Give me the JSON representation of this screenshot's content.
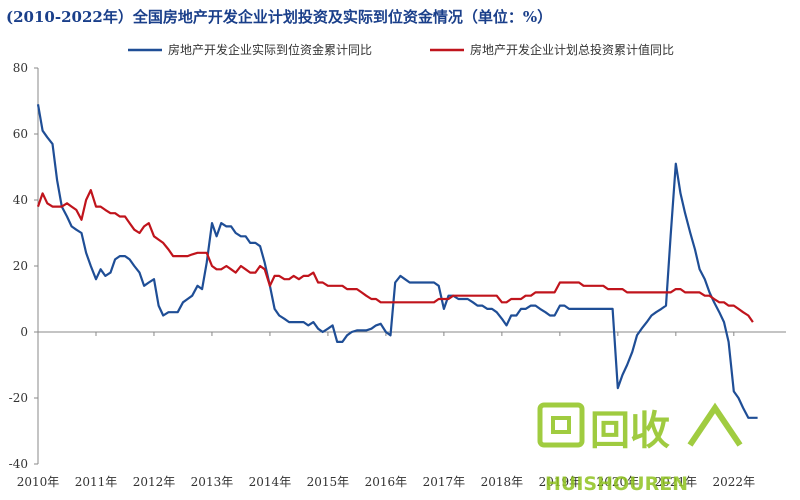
{
  "chart_data": {
    "type": "line",
    "title": "(2010-2022年）全国房地产开发企业计划投资及实际到位资金情况（单位：%）",
    "xlabel": "",
    "ylabel": "",
    "ylim": [
      -40,
      80
    ],
    "yticks": [
      -40,
      -20,
      0,
      20,
      40,
      60,
      80
    ],
    "xlim": [
      2010,
      2022.9
    ],
    "xticks": [
      {
        "x": 2010,
        "label": "2010年"
      },
      {
        "x": 2011,
        "label": "2011年"
      },
      {
        "x": 2012,
        "label": "2012年"
      },
      {
        "x": 2013,
        "label": "2013年"
      },
      {
        "x": 2014,
        "label": "2014年"
      },
      {
        "x": 2015,
        "label": "2015年"
      },
      {
        "x": 2016,
        "label": "2016年"
      },
      {
        "x": 2017,
        "label": "2017年"
      },
      {
        "x": 2018,
        "label": "2018年"
      },
      {
        "x": 2019,
        "label": "2019年"
      },
      {
        "x": 2020,
        "label": "2020年"
      },
      {
        "x": 2021,
        "label": "2021年"
      },
      {
        "x": 2022,
        "label": "2022年"
      }
    ],
    "grid": false,
    "legend_position": "top",
    "series": [
      {
        "name": "房地产开发企业实际到位资金累计同比",
        "color": "#1f4e96",
        "points": [
          [
            2010.0,
            69
          ],
          [
            2010.08,
            61
          ],
          [
            2010.16,
            59
          ],
          [
            2010.25,
            57
          ],
          [
            2010.33,
            46
          ],
          [
            2010.41,
            38
          ],
          [
            2010.5,
            35
          ],
          [
            2010.58,
            32
          ],
          [
            2010.66,
            31
          ],
          [
            2010.75,
            30
          ],
          [
            2010.83,
            24
          ],
          [
            2010.91,
            20
          ],
          [
            2011.0,
            16
          ],
          [
            2011.08,
            19
          ],
          [
            2011.16,
            17
          ],
          [
            2011.25,
            18
          ],
          [
            2011.33,
            22
          ],
          [
            2011.41,
            23
          ],
          [
            2011.5,
            23
          ],
          [
            2011.58,
            22
          ],
          [
            2011.66,
            20
          ],
          [
            2011.75,
            18
          ],
          [
            2011.83,
            14
          ],
          [
            2011.91,
            15
          ],
          [
            2012.0,
            16
          ],
          [
            2012.08,
            8
          ],
          [
            2012.16,
            5
          ],
          [
            2012.25,
            6
          ],
          [
            2012.33,
            6
          ],
          [
            2012.41,
            6
          ],
          [
            2012.5,
            9
          ],
          [
            2012.58,
            10
          ],
          [
            2012.66,
            11
          ],
          [
            2012.75,
            14
          ],
          [
            2012.83,
            13
          ],
          [
            2012.91,
            21
          ],
          [
            2013.0,
            33
          ],
          [
            2013.08,
            29
          ],
          [
            2013.16,
            33
          ],
          [
            2013.25,
            32
          ],
          [
            2013.33,
            32
          ],
          [
            2013.41,
            30
          ],
          [
            2013.5,
            29
          ],
          [
            2013.58,
            29
          ],
          [
            2013.66,
            27
          ],
          [
            2013.75,
            27
          ],
          [
            2013.83,
            26
          ],
          [
            2013.91,
            21
          ],
          [
            2014.0,
            14
          ],
          [
            2014.08,
            7
          ],
          [
            2014.16,
            5
          ],
          [
            2014.25,
            4
          ],
          [
            2014.33,
            3
          ],
          [
            2014.41,
            3
          ],
          [
            2014.5,
            3
          ],
          [
            2014.58,
            3
          ],
          [
            2014.66,
            2
          ],
          [
            2014.75,
            3
          ],
          [
            2014.83,
            1
          ],
          [
            2014.91,
            0
          ],
          [
            2015.0,
            1
          ],
          [
            2015.08,
            2
          ],
          [
            2015.16,
            -3
          ],
          [
            2015.25,
            -3
          ],
          [
            2015.33,
            -1
          ],
          [
            2015.41,
            0
          ],
          [
            2015.5,
            0.5
          ],
          [
            2015.58,
            0.5
          ],
          [
            2015.66,
            0.5
          ],
          [
            2015.75,
            1
          ],
          [
            2015.83,
            2
          ],
          [
            2015.91,
            2.5
          ],
          [
            2016.0,
            0
          ],
          [
            2016.08,
            -1
          ],
          [
            2016.16,
            15
          ],
          [
            2016.25,
            17
          ],
          [
            2016.33,
            16
          ],
          [
            2016.41,
            15
          ],
          [
            2016.5,
            15
          ],
          [
            2016.58,
            15
          ],
          [
            2016.66,
            15
          ],
          [
            2016.75,
            15
          ],
          [
            2016.83,
            15
          ],
          [
            2016.91,
            14
          ],
          [
            2017.0,
            7
          ],
          [
            2017.08,
            11
          ],
          [
            2017.16,
            11
          ],
          [
            2017.25,
            10
          ],
          [
            2017.33,
            10
          ],
          [
            2017.41,
            10
          ],
          [
            2017.5,
            9
          ],
          [
            2017.58,
            8
          ],
          [
            2017.66,
            8
          ],
          [
            2017.75,
            7
          ],
          [
            2017.83,
            7
          ],
          [
            2017.91,
            6
          ],
          [
            2018.0,
            4
          ],
          [
            2018.08,
            2
          ],
          [
            2018.16,
            5
          ],
          [
            2018.25,
            5
          ],
          [
            2018.33,
            7
          ],
          [
            2018.41,
            7
          ],
          [
            2018.5,
            8
          ],
          [
            2018.58,
            8
          ],
          [
            2018.66,
            7
          ],
          [
            2018.75,
            6
          ],
          [
            2018.83,
            5
          ],
          [
            2018.91,
            5
          ],
          [
            2019.0,
            8
          ],
          [
            2019.08,
            8
          ],
          [
            2019.16,
            7
          ],
          [
            2019.25,
            7
          ],
          [
            2019.33,
            7
          ],
          [
            2019.41,
            7
          ],
          [
            2019.5,
            7
          ],
          [
            2019.58,
            7
          ],
          [
            2019.66,
            7
          ],
          [
            2019.75,
            7
          ],
          [
            2019.83,
            7
          ],
          [
            2019.91,
            7
          ],
          [
            2020.0,
            -17
          ],
          [
            2020.08,
            -13
          ],
          [
            2020.16,
            -10
          ],
          [
            2020.25,
            -6
          ],
          [
            2020.33,
            -1
          ],
          [
            2020.41,
            1
          ],
          [
            2020.5,
            3
          ],
          [
            2020.58,
            5
          ],
          [
            2020.66,
            6
          ],
          [
            2020.75,
            7
          ],
          [
            2020.83,
            8
          ],
          [
            2020.91,
            29
          ],
          [
            2021.0,
            51
          ],
          [
            2021.08,
            42
          ],
          [
            2021.16,
            36
          ],
          [
            2021.25,
            30
          ],
          [
            2021.33,
            25
          ],
          [
            2021.41,
            19
          ],
          [
            2021.5,
            16
          ],
          [
            2021.58,
            12
          ],
          [
            2021.66,
            9
          ],
          [
            2021.75,
            6
          ],
          [
            2021.83,
            3
          ],
          [
            2021.91,
            -3
          ],
          [
            2022.0,
            -18
          ],
          [
            2022.08,
            -20
          ],
          [
            2022.16,
            -23
          ],
          [
            2022.25,
            -26
          ],
          [
            2022.33,
            -26
          ],
          [
            2022.41,
            -26
          ]
        ]
      },
      {
        "name": "房地产开发企业计划总投资累计值同比",
        "color": "#c0141c",
        "points": [
          [
            2010.0,
            38
          ],
          [
            2010.08,
            42
          ],
          [
            2010.16,
            39
          ],
          [
            2010.25,
            38
          ],
          [
            2010.33,
            38
          ],
          [
            2010.41,
            38
          ],
          [
            2010.5,
            39
          ],
          [
            2010.58,
            38
          ],
          [
            2010.66,
            37
          ],
          [
            2010.75,
            34
          ],
          [
            2010.83,
            40
          ],
          [
            2010.91,
            43
          ],
          [
            2011.0,
            38
          ],
          [
            2011.08,
            38
          ],
          [
            2011.16,
            37
          ],
          [
            2011.25,
            36
          ],
          [
            2011.33,
            36
          ],
          [
            2011.41,
            35
          ],
          [
            2011.5,
            35
          ],
          [
            2011.58,
            33
          ],
          [
            2011.66,
            31
          ],
          [
            2011.75,
            30
          ],
          [
            2011.83,
            32
          ],
          [
            2011.91,
            33
          ],
          [
            2012.0,
            29
          ],
          [
            2012.08,
            28
          ],
          [
            2012.16,
            27
          ],
          [
            2012.25,
            25
          ],
          [
            2012.33,
            23
          ],
          [
            2012.41,
            23
          ],
          [
            2012.5,
            23
          ],
          [
            2012.58,
            23
          ],
          [
            2012.66,
            23.5
          ],
          [
            2012.75,
            24
          ],
          [
            2012.83,
            24
          ],
          [
            2012.91,
            24
          ],
          [
            2013.0,
            20
          ],
          [
            2013.08,
            19
          ],
          [
            2013.16,
            19
          ],
          [
            2013.25,
            20
          ],
          [
            2013.33,
            19
          ],
          [
            2013.41,
            18
          ],
          [
            2013.5,
            20
          ],
          [
            2013.58,
            19
          ],
          [
            2013.66,
            18
          ],
          [
            2013.75,
            18
          ],
          [
            2013.83,
            20
          ],
          [
            2013.91,
            19
          ],
          [
            2014.0,
            14
          ],
          [
            2014.08,
            17
          ],
          [
            2014.16,
            17
          ],
          [
            2014.25,
            16
          ],
          [
            2014.33,
            16
          ],
          [
            2014.41,
            17
          ],
          [
            2014.5,
            16
          ],
          [
            2014.58,
            17
          ],
          [
            2014.66,
            17
          ],
          [
            2014.75,
            18
          ],
          [
            2014.83,
            15
          ],
          [
            2014.91,
            15
          ],
          [
            2015.0,
            14
          ],
          [
            2015.08,
            14
          ],
          [
            2015.16,
            14
          ],
          [
            2015.25,
            14
          ],
          [
            2015.33,
            13
          ],
          [
            2015.41,
            13
          ],
          [
            2015.5,
            13
          ],
          [
            2015.58,
            12
          ],
          [
            2015.66,
            11
          ],
          [
            2015.75,
            10
          ],
          [
            2015.83,
            10
          ],
          [
            2015.91,
            9
          ],
          [
            2016.0,
            9
          ],
          [
            2016.08,
            9
          ],
          [
            2016.16,
            9
          ],
          [
            2016.25,
            9
          ],
          [
            2016.33,
            9
          ],
          [
            2016.41,
            9
          ],
          [
            2016.5,
            9
          ],
          [
            2016.58,
            9
          ],
          [
            2016.66,
            9
          ],
          [
            2016.75,
            9
          ],
          [
            2016.83,
            9
          ],
          [
            2016.91,
            10
          ],
          [
            2017.0,
            10
          ],
          [
            2017.08,
            10
          ],
          [
            2017.16,
            11
          ],
          [
            2017.25,
            11
          ],
          [
            2017.33,
            11
          ],
          [
            2017.41,
            11
          ],
          [
            2017.5,
            11
          ],
          [
            2017.58,
            11
          ],
          [
            2017.66,
            11
          ],
          [
            2017.75,
            11
          ],
          [
            2017.83,
            11
          ],
          [
            2017.91,
            11
          ],
          [
            2018.0,
            9
          ],
          [
            2018.08,
            9
          ],
          [
            2018.16,
            10
          ],
          [
            2018.25,
            10
          ],
          [
            2018.33,
            10
          ],
          [
            2018.41,
            11
          ],
          [
            2018.5,
            11
          ],
          [
            2018.58,
            12
          ],
          [
            2018.66,
            12
          ],
          [
            2018.75,
            12
          ],
          [
            2018.83,
            12
          ],
          [
            2018.91,
            12
          ],
          [
            2019.0,
            15
          ],
          [
            2019.08,
            15
          ],
          [
            2019.16,
            15
          ],
          [
            2019.25,
            15
          ],
          [
            2019.33,
            15
          ],
          [
            2019.41,
            14
          ],
          [
            2019.5,
            14
          ],
          [
            2019.58,
            14
          ],
          [
            2019.66,
            14
          ],
          [
            2019.75,
            14
          ],
          [
            2019.83,
            13
          ],
          [
            2019.91,
            13
          ],
          [
            2020.0,
            13
          ],
          [
            2020.08,
            13
          ],
          [
            2020.16,
            12
          ],
          [
            2020.25,
            12
          ],
          [
            2020.33,
            12
          ],
          [
            2020.41,
            12
          ],
          [
            2020.5,
            12
          ],
          [
            2020.58,
            12
          ],
          [
            2020.66,
            12
          ],
          [
            2020.75,
            12
          ],
          [
            2020.83,
            12
          ],
          [
            2020.91,
            12
          ],
          [
            2021.0,
            13
          ],
          [
            2021.08,
            13
          ],
          [
            2021.16,
            12
          ],
          [
            2021.25,
            12
          ],
          [
            2021.33,
            12
          ],
          [
            2021.41,
            12
          ],
          [
            2021.5,
            11
          ],
          [
            2021.58,
            11
          ],
          [
            2021.66,
            10
          ],
          [
            2021.75,
            9
          ],
          [
            2021.83,
            9
          ],
          [
            2021.91,
            8
          ],
          [
            2022.0,
            8
          ],
          [
            2022.08,
            7
          ],
          [
            2022.16,
            6
          ],
          [
            2022.25,
            5
          ],
          [
            2022.33,
            3
          ]
        ]
      }
    ],
    "watermark": {
      "text": "回收",
      "subtext": "HUISHOUREN",
      "color": "#8fc31f"
    }
  }
}
